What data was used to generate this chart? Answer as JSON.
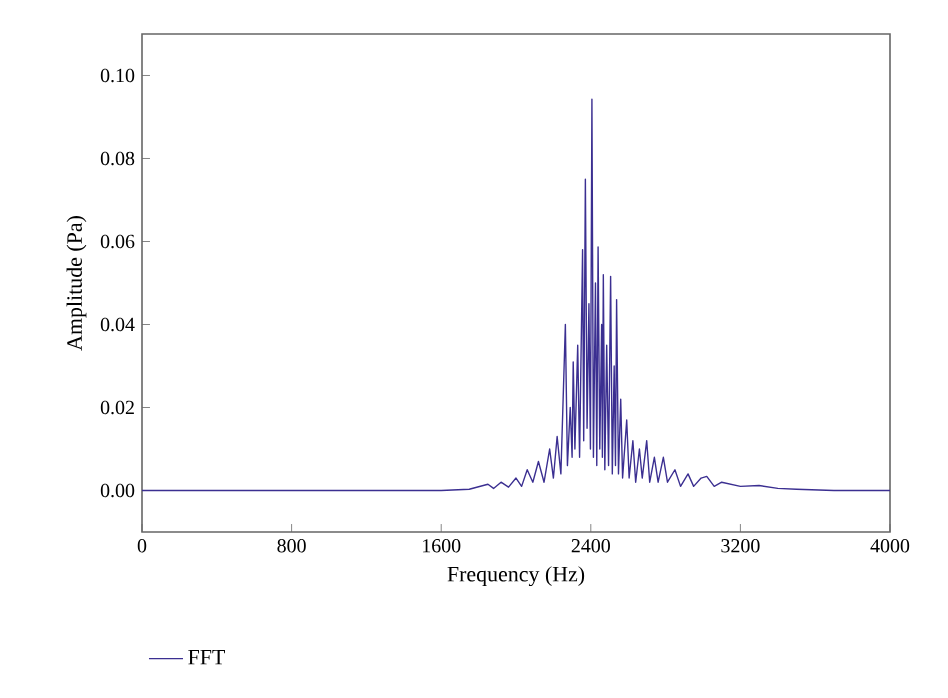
{
  "chart_data": {
    "type": "line",
    "xlabel": "Frequency (Hz)",
    "ylabel": "Amplitude (Pa)",
    "xlim": [
      0,
      4000
    ],
    "xticks": [
      0,
      800,
      1600,
      2400,
      3200,
      4000
    ],
    "ylim": [
      -0.01,
      0.11
    ],
    "yticks": [
      {
        "value": 0,
        "label": "0.00"
      },
      {
        "value": 0.02,
        "label": "0.02"
      },
      {
        "value": 0.04,
        "label": "0.04"
      },
      {
        "value": 0.06,
        "label": "0.06"
      },
      {
        "value": 0.08,
        "label": "0.08"
      },
      {
        "value": 0.1,
        "label": "0.10"
      }
    ],
    "legend": "bottom",
    "grid": false,
    "marker": "none",
    "line_style": "solid",
    "series": [
      {
        "name": "FFT",
        "color": "#3b2f91",
        "x": [
          0,
          400,
          800,
          1200,
          1600,
          1750,
          1850,
          1880,
          1920,
          1960,
          2000,
          2030,
          2060,
          2090,
          2120,
          2150,
          2180,
          2200,
          2220,
          2240,
          2264,
          2275,
          2290,
          2300,
          2306,
          2315,
          2330,
          2340,
          2356,
          2362,
          2371,
          2380,
          2390,
          2398,
          2406,
          2414,
          2425,
          2432,
          2439,
          2448,
          2458,
          2462,
          2467,
          2475,
          2485,
          2495,
          2506,
          2515,
          2525,
          2532,
          2538,
          2548,
          2560,
          2570,
          2592,
          2605,
          2625,
          2640,
          2660,
          2675,
          2699,
          2715,
          2740,
          2760,
          2788,
          2810,
          2850,
          2880,
          2920,
          2950,
          2990,
          3020,
          3060,
          3100,
          3200,
          3300,
          3400,
          3500,
          3700,
          4000
        ],
        "values": [
          0,
          0,
          0,
          0,
          0,
          0.0003,
          0.0015,
          0.0005,
          0.002,
          0.0008,
          0.003,
          0.001,
          0.005,
          0.002,
          0.007,
          0.002,
          0.01,
          0.003,
          0.013,
          0.004,
          0.04,
          0.006,
          0.02,
          0.008,
          0.031,
          0.01,
          0.035,
          0.008,
          0.058,
          0.012,
          0.075,
          0.015,
          0.045,
          0.01,
          0.0943,
          0.008,
          0.05,
          0.006,
          0.0587,
          0.01,
          0.04,
          0.008,
          0.052,
          0.005,
          0.035,
          0.006,
          0.0516,
          0.004,
          0.03,
          0.006,
          0.046,
          0.004,
          0.022,
          0.003,
          0.017,
          0.003,
          0.012,
          0.002,
          0.01,
          0.003,
          0.012,
          0.002,
          0.008,
          0.002,
          0.008,
          0.002,
          0.005,
          0.001,
          0.004,
          0.001,
          0.003,
          0.0034,
          0.001,
          0.002,
          0.001,
          0.0012,
          0.0005,
          0.0003,
          0,
          0
        ]
      }
    ]
  }
}
